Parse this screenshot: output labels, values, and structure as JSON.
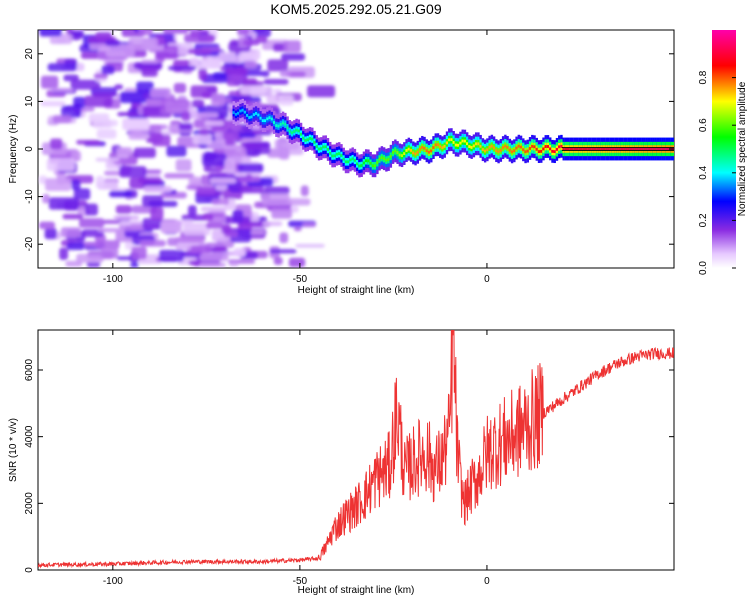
{
  "chart_data": [
    {
      "type": "heatmap",
      "title": "KOM5.2025.292.05.21.G09",
      "xlabel": "Height of straight line (km)",
      "ylabel": "Frequency (Hz)",
      "xlim": [
        -120,
        50
      ],
      "ylim": [
        -25,
        25
      ],
      "xticks": [
        -100,
        -50,
        0
      ],
      "yticks": [
        -20,
        -10,
        0,
        10,
        20
      ],
      "colorbar": {
        "label": "Normalized spectral amplitude",
        "range": [
          0,
          1
        ],
        "ticks": [
          "0.0",
          "0.2",
          "0.4",
          "0.6",
          "0.8"
        ]
      },
      "ridge": {
        "x": [
          -68,
          -60,
          -55,
          -50,
          -45,
          -40,
          -35,
          -30,
          -25,
          -20,
          -15,
          -10,
          -5,
          0,
          10,
          20,
          50
        ],
        "freq": [
          8,
          6.5,
          5,
          3,
          0.5,
          -1.5,
          -3,
          -3,
          -1,
          -0.5,
          0,
          1.5,
          1,
          0,
          0,
          0,
          0
        ],
        "amplitude": [
          0.35,
          0.4,
          0.45,
          0.5,
          0.5,
          0.5,
          0.5,
          0.6,
          0.6,
          0.75,
          0.8,
          0.7,
          0.7,
          0.75,
          0.8,
          0.9,
          0.95
        ]
      },
      "noise_region_x": [
        -120,
        -65
      ],
      "noise_amplitude": [
        0.05,
        0.2
      ]
    },
    {
      "type": "line",
      "xlabel": "Height of straight line (km)",
      "ylabel": "SNR (10 * v/v)",
      "xlim": [
        -120,
        50
      ],
      "ylim": [
        0,
        7200
      ],
      "xticks": [
        -100,
        -50,
        0
      ],
      "yticks": [
        0,
        2000,
        4000,
        6000
      ],
      "series": [
        {
          "name": "SNR",
          "color": "#ee3333",
          "x": [
            -120,
            -100,
            -80,
            -60,
            -50,
            -45,
            -43,
            -41,
            -38,
            -35,
            -32,
            -30,
            -28,
            -26,
            -24,
            -22,
            -20,
            -18,
            -16,
            -14,
            -12,
            -10,
            -9,
            -8,
            -7,
            -6,
            -4,
            -2,
            0,
            2,
            5,
            8,
            10,
            15,
            20,
            25,
            30,
            35,
            40,
            45,
            50
          ],
          "y": [
            150,
            180,
            250,
            250,
            300,
            350,
            700,
            1200,
            1600,
            1900,
            2300,
            2700,
            2900,
            3100,
            4800,
            2900,
            3200,
            3400,
            3500,
            3000,
            3300,
            4100,
            7100,
            3700,
            2500,
            2000,
            2500,
            2900,
            3500,
            3700,
            3900,
            4100,
            4300,
            4700,
            5100,
            5500,
            5900,
            6200,
            6400,
            6500,
            6500
          ]
        }
      ]
    }
  ]
}
